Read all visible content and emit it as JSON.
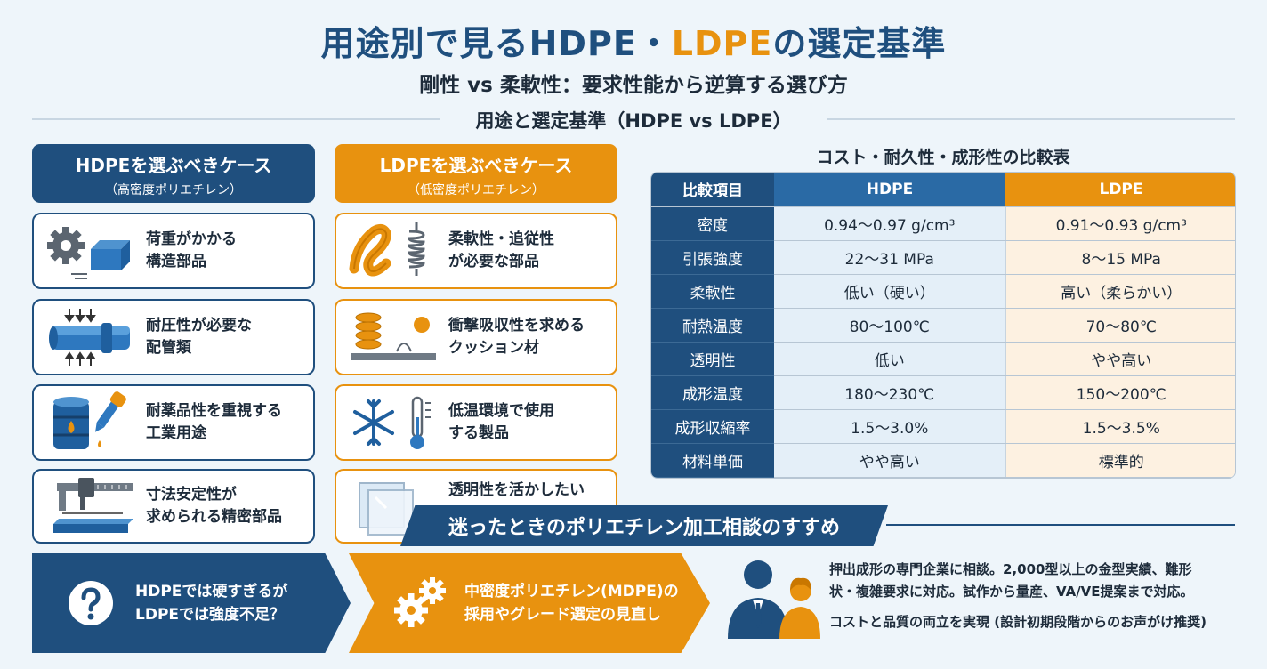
{
  "title": {
    "part1": "用途別で見るHDPE・",
    "part2": "LDPE",
    "part3": "の選定基準"
  },
  "subtitle": "剛性 vs 柔軟性：要求性能から逆算する選び方",
  "section_heading": "用途と選定基準（HDPE vs LDPE）",
  "hdpe": {
    "heading": "HDPEを選ぶべきケース",
    "subheading": "（高密度ポリエチレン）",
    "cards": [
      {
        "line1": "荷重がかかる",
        "line2": "構造部品",
        "icon": "gear-block-icon"
      },
      {
        "line1": "耐圧性が必要な",
        "line2": "配管類",
        "icon": "pipe-icon"
      },
      {
        "line1": "耐薬品性を重視する",
        "line2": "工業用途",
        "icon": "chemical-drum-icon"
      },
      {
        "line1": "寸法安定性が",
        "line2": "求められる精密部品",
        "icon": "caliper-icon"
      }
    ]
  },
  "ldpe": {
    "heading": "LDPEを選ぶべきケース",
    "subheading": "（低密度ポリエチレン）",
    "cards": [
      {
        "line1": "柔軟性・追従性",
        "line2": "が必要な部品",
        "icon": "spring-icon"
      },
      {
        "line1": "衝撃吸収性を求める",
        "line2": "クッション材",
        "icon": "cushion-icon"
      },
      {
        "line1": "低温環境で使用",
        "line2": "する製品",
        "icon": "snowflake-thermometer-icon"
      },
      {
        "line1": "透明性を活かしたい",
        "line2": "",
        "icon": "transparent-sheet-icon"
      }
    ]
  },
  "table": {
    "title": "コスト・耐久性・成形性の比較表",
    "headers": [
      "比較項目",
      "HDPE",
      "LDPE"
    ],
    "rows": [
      {
        "label": "密度",
        "hdpe": "0.94〜0.97 g/cm³",
        "ldpe": "0.91〜0.93 g/cm³"
      },
      {
        "label": "引張強度",
        "hdpe": "22〜31 MPa",
        "ldpe": "8〜15 MPa"
      },
      {
        "label": "柔軟性",
        "hdpe": "低い（硬い）",
        "ldpe": "高い（柔らかい）"
      },
      {
        "label": "耐熱温度",
        "hdpe": "80〜100℃",
        "ldpe": "70〜80℃"
      },
      {
        "label": "透明性",
        "hdpe": "低い",
        "ldpe": "やや高い"
      },
      {
        "label": "成形温度",
        "hdpe": "180〜230℃",
        "ldpe": "150〜200℃"
      },
      {
        "label": "成形収縮率",
        "hdpe": "1.5〜3.0%",
        "ldpe": "1.5〜3.5%"
      },
      {
        "label": "材料単価",
        "hdpe": "やや高い",
        "ldpe": "標準的"
      }
    ]
  },
  "consult": {
    "banner": "迷ったときのポリエチレン加工相談のすすめ",
    "question_line1": "HDPEでは硬すぎるが",
    "question_line2": "LDPEでは強度不足？",
    "mdpe_line1": "中密度ポリエチレン(MDPE)の",
    "mdpe_line2": "採用やグレード選定の見直し",
    "body_line1": "押出成形の専門企業に相談。2,000型以上の金型実績、難形",
    "body_line2": "状・複雑要求に対応。試作から量産、VA/VE提案まで対応。",
    "footer": "コストと品質の両立を実現 (設計初期段階からのお声がけ推奨)"
  },
  "colors": {
    "navy": "#1f4f7e",
    "orange": "#e8920f",
    "background": "#eef5fa"
  }
}
